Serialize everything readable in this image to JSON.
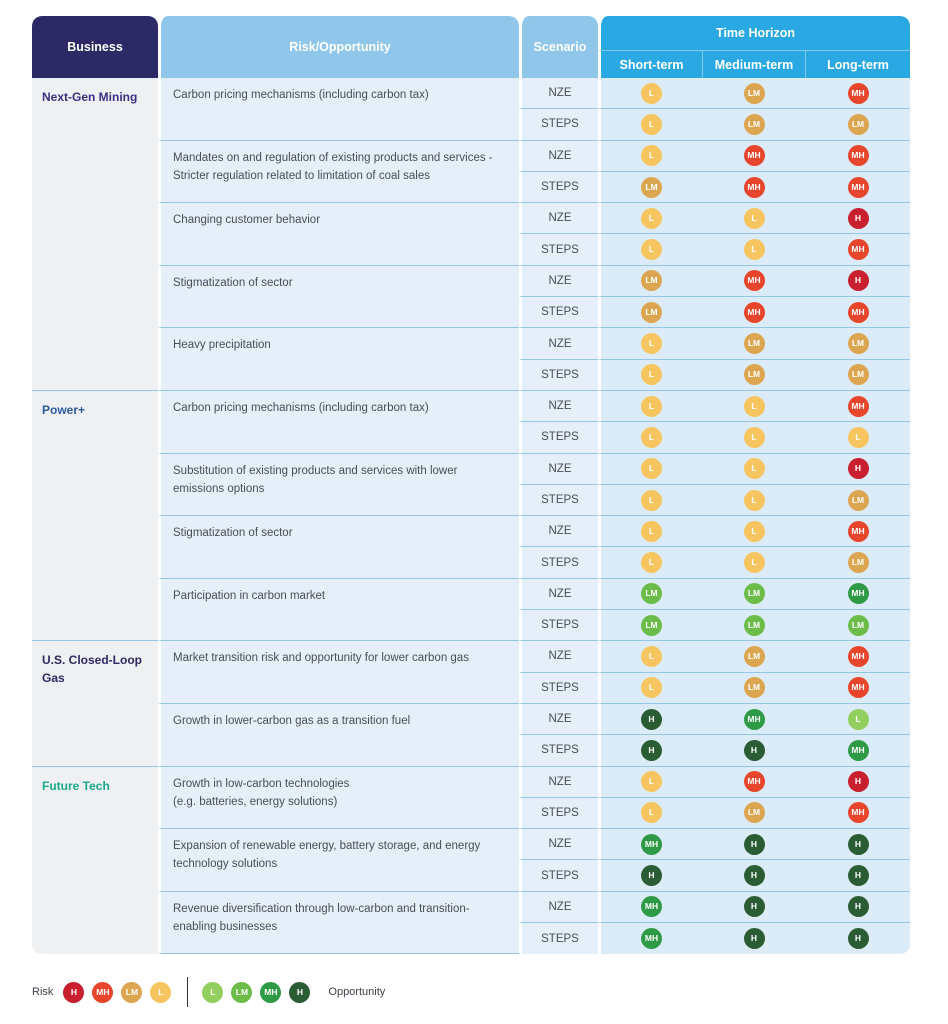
{
  "header": {
    "business": "Business",
    "risk": "Risk/Opportunity",
    "scenario": "Scenario",
    "time_horizon": "Time Horizon",
    "short": "Short-term",
    "medium": "Medium-term",
    "long": "Long-term"
  },
  "colors": {
    "risk_H": "#c8202e",
    "risk_MH": "#e8462c",
    "risk_LM": "#dca650",
    "risk_L": "#f7c560",
    "opp_L": "#92cf5e",
    "opp_LM": "#6cbc49",
    "opp_MH": "#2f9a45",
    "opp_H": "#2a5d33"
  },
  "businesses": [
    {
      "name": "Next-Gen Mining",
      "color": "#3a2f85",
      "items": [
        {
          "text": "Carbon pricing mechanisms (including carbon tax)",
          "rows": [
            {
              "scenario": "NZE",
              "vals": [
                [
                  "risk",
                  "L"
                ],
                [
                  "risk",
                  "LM"
                ],
                [
                  "risk",
                  "MH"
                ]
              ]
            },
            {
              "scenario": "STEPS",
              "vals": [
                [
                  "risk",
                  "L"
                ],
                [
                  "risk",
                  "LM"
                ],
                [
                  "risk",
                  "LM"
                ]
              ]
            }
          ]
        },
        {
          "text": "Mandates on and regulation of existing products and services - Stricter regulation related to limitation of coal sales",
          "rows": [
            {
              "scenario": "NZE",
              "vals": [
                [
                  "risk",
                  "L"
                ],
                [
                  "risk",
                  "MH"
                ],
                [
                  "risk",
                  "MH"
                ]
              ]
            },
            {
              "scenario": "STEPS",
              "vals": [
                [
                  "risk",
                  "LM"
                ],
                [
                  "risk",
                  "MH"
                ],
                [
                  "risk",
                  "MH"
                ]
              ]
            }
          ]
        },
        {
          "text": "Changing customer behavior",
          "rows": [
            {
              "scenario": "NZE",
              "vals": [
                [
                  "risk",
                  "L"
                ],
                [
                  "risk",
                  "L"
                ],
                [
                  "risk",
                  "H"
                ]
              ]
            },
            {
              "scenario": "STEPS",
              "vals": [
                [
                  "risk",
                  "L"
                ],
                [
                  "risk",
                  "L"
                ],
                [
                  "risk",
                  "MH"
                ]
              ]
            }
          ]
        },
        {
          "text": "Stigmatization of sector",
          "rows": [
            {
              "scenario": "NZE",
              "vals": [
                [
                  "risk",
                  "LM"
                ],
                [
                  "risk",
                  "MH"
                ],
                [
                  "risk",
                  "H"
                ]
              ]
            },
            {
              "scenario": "STEPS",
              "vals": [
                [
                  "risk",
                  "LM"
                ],
                [
                  "risk",
                  "MH"
                ],
                [
                  "risk",
                  "MH"
                ]
              ]
            }
          ]
        },
        {
          "text": "Heavy precipitation",
          "rows": [
            {
              "scenario": "NZE",
              "vals": [
                [
                  "risk",
                  "L"
                ],
                [
                  "risk",
                  "LM"
                ],
                [
                  "risk",
                  "LM"
                ]
              ]
            },
            {
              "scenario": "STEPS",
              "vals": [
                [
                  "risk",
                  "L"
                ],
                [
                  "risk",
                  "LM"
                ],
                [
                  "risk",
                  "LM"
                ]
              ]
            }
          ]
        }
      ]
    },
    {
      "name": "Power+",
      "color": "#2c5aa0",
      "items": [
        {
          "text": "Carbon pricing mechanisms (including carbon tax)",
          "rows": [
            {
              "scenario": "NZE",
              "vals": [
                [
                  "risk",
                  "L"
                ],
                [
                  "risk",
                  "L"
                ],
                [
                  "risk",
                  "MH"
                ]
              ]
            },
            {
              "scenario": "STEPS",
              "vals": [
                [
                  "risk",
                  "L"
                ],
                [
                  "risk",
                  "L"
                ],
                [
                  "risk",
                  "L"
                ]
              ]
            }
          ]
        },
        {
          "text": "Substitution of existing products and services with lower emissions options",
          "rows": [
            {
              "scenario": "NZE",
              "vals": [
                [
                  "risk",
                  "L"
                ],
                [
                  "risk",
                  "L"
                ],
                [
                  "risk",
                  "H"
                ]
              ]
            },
            {
              "scenario": "STEPS",
              "vals": [
                [
                  "risk",
                  "L"
                ],
                [
                  "risk",
                  "L"
                ],
                [
                  "risk",
                  "LM"
                ]
              ]
            }
          ]
        },
        {
          "text": "Stigmatization of sector",
          "rows": [
            {
              "scenario": "NZE",
              "vals": [
                [
                  "risk",
                  "L"
                ],
                [
                  "risk",
                  "L"
                ],
                [
                  "risk",
                  "MH"
                ]
              ]
            },
            {
              "scenario": "STEPS",
              "vals": [
                [
                  "risk",
                  "L"
                ],
                [
                  "risk",
                  "L"
                ],
                [
                  "risk",
                  "LM"
                ]
              ]
            }
          ]
        },
        {
          "text": "Participation in carbon market",
          "rows": [
            {
              "scenario": "NZE",
              "vals": [
                [
                  "opp",
                  "LM"
                ],
                [
                  "opp",
                  "LM"
                ],
                [
                  "opp",
                  "MH"
                ]
              ]
            },
            {
              "scenario": "STEPS",
              "vals": [
                [
                  "opp",
                  "LM"
                ],
                [
                  "opp",
                  "LM"
                ],
                [
                  "opp",
                  "LM"
                ]
              ]
            }
          ]
        }
      ]
    },
    {
      "name": "U.S. Closed-Loop Gas",
      "color": "#2c2a66",
      "items": [
        {
          "text": "Market transition risk and opportunity for lower carbon gas",
          "rows": [
            {
              "scenario": "NZE",
              "vals": [
                [
                  "risk",
                  "L"
                ],
                [
                  "risk",
                  "LM"
                ],
                [
                  "risk",
                  "MH"
                ]
              ]
            },
            {
              "scenario": "STEPS",
              "vals": [
                [
                  "risk",
                  "L"
                ],
                [
                  "risk",
                  "LM"
                ],
                [
                  "risk",
                  "MH"
                ]
              ]
            }
          ]
        },
        {
          "text": "Growth in lower-carbon gas as a transition fuel",
          "rows": [
            {
              "scenario": "NZE",
              "vals": [
                [
                  "opp",
                  "H"
                ],
                [
                  "opp",
                  "MH"
                ],
                [
                  "opp",
                  "L"
                ]
              ]
            },
            {
              "scenario": "STEPS",
              "vals": [
                [
                  "opp",
                  "H"
                ],
                [
                  "opp",
                  "H"
                ],
                [
                  "opp",
                  "MH"
                ]
              ]
            }
          ]
        }
      ]
    },
    {
      "name": "Future Tech",
      "color": "#1aa98a",
      "items": [
        {
          "text": "Growth in low-carbon technologies\n(e.g. batteries, energy solutions)",
          "rows": [
            {
              "scenario": "NZE",
              "vals": [
                [
                  "risk",
                  "L"
                ],
                [
                  "risk",
                  "MH"
                ],
                [
                  "risk",
                  "H"
                ]
              ]
            },
            {
              "scenario": "STEPS",
              "vals": [
                [
                  "risk",
                  "L"
                ],
                [
                  "risk",
                  "LM"
                ],
                [
                  "risk",
                  "MH"
                ]
              ]
            }
          ]
        },
        {
          "text": "Expansion of renewable energy, battery storage, and energy technology solutions",
          "rows": [
            {
              "scenario": "NZE",
              "vals": [
                [
                  "opp",
                  "MH"
                ],
                [
                  "opp",
                  "H"
                ],
                [
                  "opp",
                  "H"
                ]
              ]
            },
            {
              "scenario": "STEPS",
              "vals": [
                [
                  "opp",
                  "H"
                ],
                [
                  "opp",
                  "H"
                ],
                [
                  "opp",
                  "H"
                ]
              ]
            }
          ]
        },
        {
          "text": "Revenue diversification through low-carbon and transition-enabling businesses",
          "rows": [
            {
              "scenario": "NZE",
              "vals": [
                [
                  "opp",
                  "MH"
                ],
                [
                  "opp",
                  "H"
                ],
                [
                  "opp",
                  "H"
                ]
              ]
            },
            {
              "scenario": "STEPS",
              "vals": [
                [
                  "opp",
                  "MH"
                ],
                [
                  "opp",
                  "H"
                ],
                [
                  "opp",
                  "H"
                ]
              ]
            }
          ]
        }
      ]
    }
  ],
  "legend": {
    "risk_label": "Risk",
    "risk_badges": [
      "H",
      "MH",
      "LM",
      "L"
    ],
    "opp_badges": [
      "L",
      "LM",
      "MH",
      "H"
    ],
    "opp_label": "Opportunity"
  }
}
